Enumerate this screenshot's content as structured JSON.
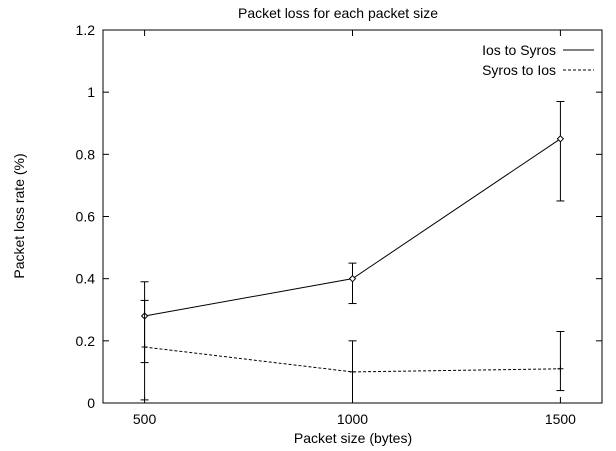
{
  "chart_data": {
    "type": "line",
    "title": "Packet loss for each packet size",
    "xlabel": "Packet size (bytes)",
    "ylabel": "Packet loss rate (%)",
    "x": [
      500,
      1000,
      1500
    ],
    "xlim": [
      400,
      1600
    ],
    "ylim": [
      0,
      1.2
    ],
    "xticks": [
      "500",
      "1000",
      "1500"
    ],
    "yticks": [
      "0",
      "0.2",
      "0.4",
      "0.6",
      "0.8",
      "1",
      "1.2"
    ],
    "grid": false,
    "legend_position": "top-right",
    "series": [
      {
        "name": "Ios to Syros",
        "line_style": "solid",
        "marker": "diamond",
        "values": [
          0.28,
          0.4,
          0.85
        ],
        "error_low": [
          0.13,
          0.32,
          0.65
        ],
        "error_high": [
          0.39,
          0.45,
          0.97
        ]
      },
      {
        "name": "Syros to Ios",
        "line_style": "dashed",
        "marker": "plus",
        "values": [
          0.18,
          0.1,
          0.11
        ],
        "error_low": [
          0.01,
          0.0,
          0.04
        ],
        "error_high": [
          0.33,
          0.2,
          0.23
        ]
      }
    ]
  }
}
